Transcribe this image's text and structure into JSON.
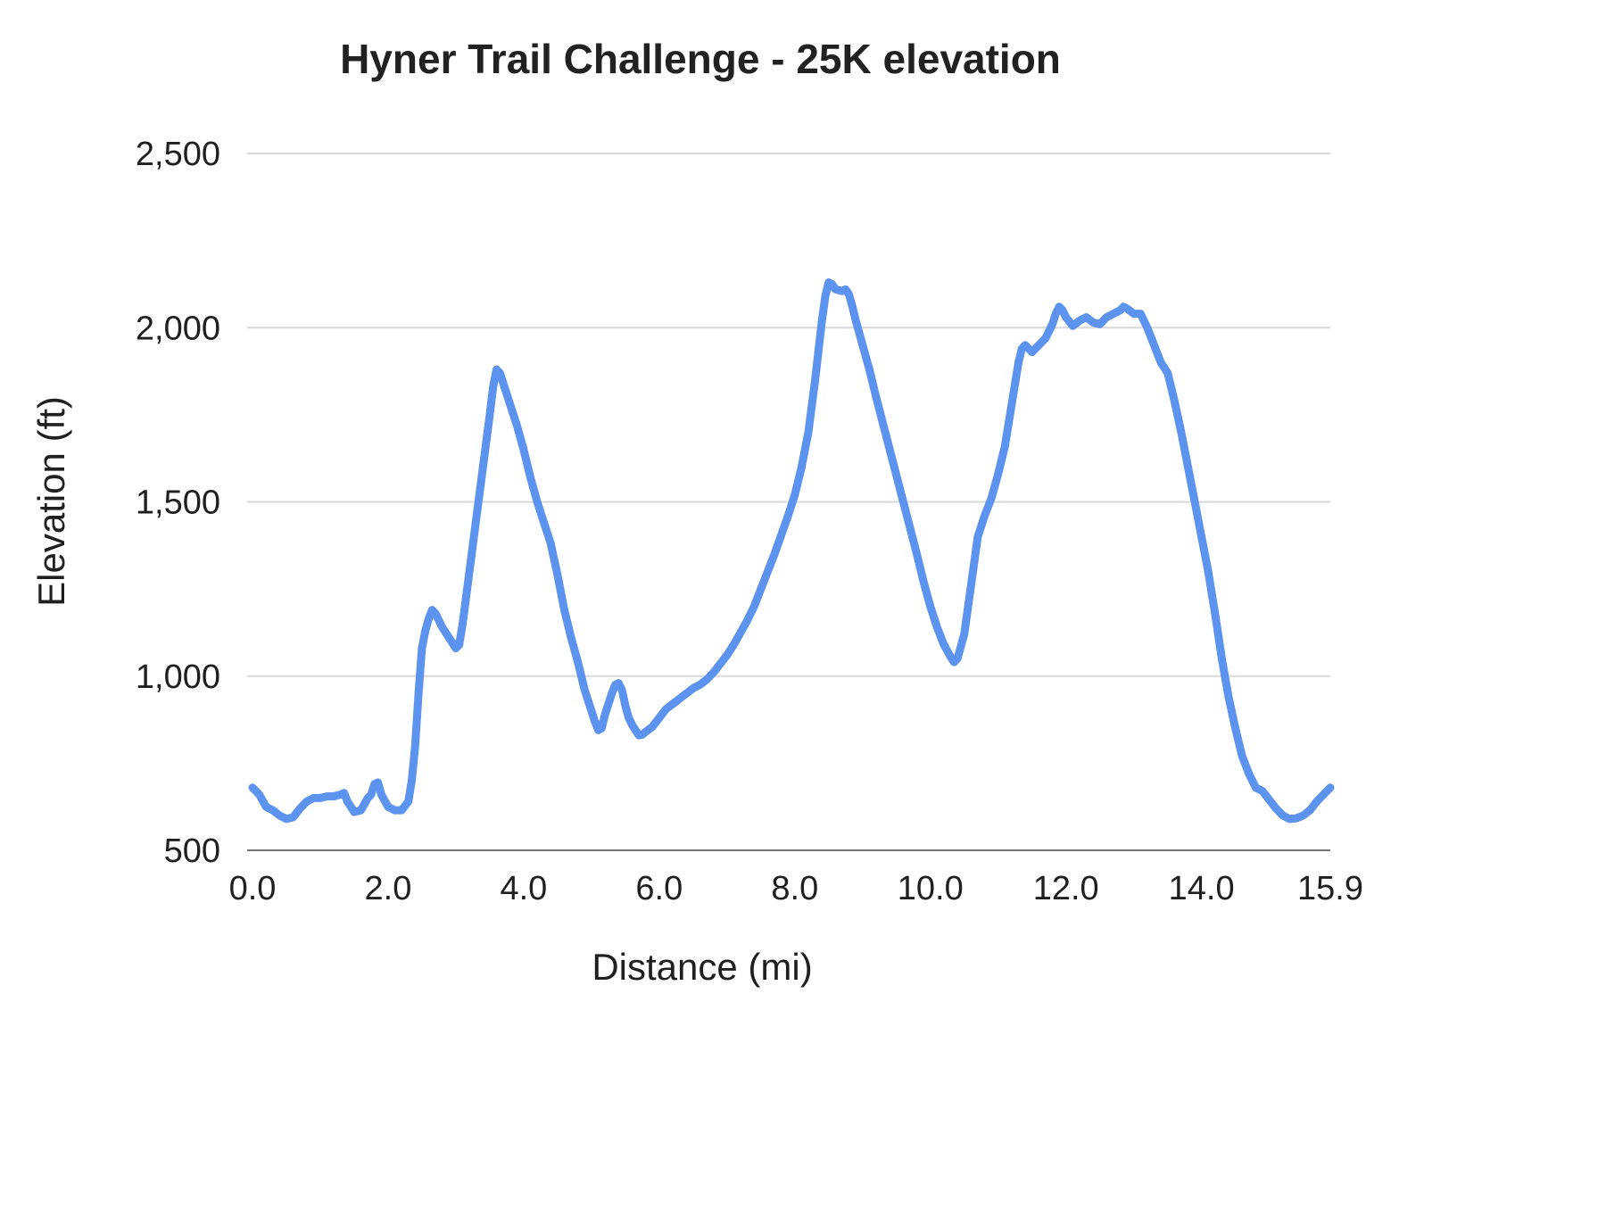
{
  "chart_data": {
    "type": "line",
    "title": "Hyner Trail Challenge - 25K elevation",
    "xlabel": "Distance (mi)",
    "ylabel": "Elevation (ft)",
    "xlim": [
      0,
      15.9
    ],
    "ylim": [
      500,
      2500
    ],
    "grid": "horizontal",
    "legend": "none",
    "line_color": "#5b93ee",
    "grid_color": "#d9d9d9",
    "baseline_color": "#757575",
    "y_ticks": [
      {
        "label": "500",
        "value": 500
      },
      {
        "label": "1,000",
        "value": 1000
      },
      {
        "label": "1,500",
        "value": 1500
      },
      {
        "label": "2,000",
        "value": 2000
      },
      {
        "label": "2,500",
        "value": 2500
      }
    ],
    "x_ticks": [
      {
        "label": "0.0",
        "value": 0
      },
      {
        "label": "2.0",
        "value": 2
      },
      {
        "label": "4.0",
        "value": 4
      },
      {
        "label": "6.0",
        "value": 6
      },
      {
        "label": "8.0",
        "value": 8
      },
      {
        "label": "10.0",
        "value": 10
      },
      {
        "label": "12.0",
        "value": 12
      },
      {
        "label": "14.0",
        "value": 14
      },
      {
        "label": "15.9",
        "value": 15.9
      }
    ],
    "series": [
      {
        "name": "Elevation",
        "x": [
          0.0,
          0.1,
          0.2,
          0.3,
          0.4,
          0.5,
          0.6,
          0.7,
          0.8,
          0.9,
          1.0,
          1.1,
          1.2,
          1.3,
          1.35,
          1.4,
          1.5,
          1.6,
          1.7,
          1.75,
          1.8,
          1.85,
          1.9,
          2.0,
          2.1,
          2.2,
          2.3,
          2.35,
          2.4,
          2.45,
          2.5,
          2.55,
          2.6,
          2.65,
          2.7,
          2.75,
          2.8,
          2.9,
          3.0,
          3.05,
          3.1,
          3.2,
          3.3,
          3.4,
          3.5,
          3.55,
          3.6,
          3.65,
          3.7,
          3.8,
          3.9,
          4.0,
          4.1,
          4.2,
          4.3,
          4.4,
          4.5,
          4.6,
          4.7,
          4.8,
          4.9,
          5.0,
          5.05,
          5.1,
          5.15,
          5.2,
          5.3,
          5.35,
          5.4,
          5.45,
          5.5,
          5.55,
          5.6,
          5.65,
          5.7,
          5.75,
          5.8,
          5.9,
          6.0,
          6.1,
          6.2,
          6.3,
          6.4,
          6.5,
          6.6,
          6.7,
          6.8,
          6.9,
          7.0,
          7.1,
          7.2,
          7.3,
          7.4,
          7.5,
          7.6,
          7.7,
          7.8,
          7.9,
          8.0,
          8.1,
          8.2,
          8.3,
          8.4,
          8.45,
          8.5,
          8.55,
          8.6,
          8.7,
          8.75,
          8.8,
          8.85,
          8.9,
          9.0,
          9.1,
          9.2,
          9.3,
          9.4,
          9.5,
          9.6,
          9.7,
          9.8,
          9.9,
          10.0,
          10.1,
          10.2,
          10.3,
          10.35,
          10.4,
          10.5,
          10.6,
          10.7,
          10.8,
          10.9,
          11.0,
          11.1,
          11.2,
          11.3,
          11.35,
          11.4,
          11.5,
          11.6,
          11.7,
          11.8,
          11.85,
          11.9,
          11.95,
          12.0,
          12.1,
          12.2,
          12.3,
          12.4,
          12.5,
          12.6,
          12.7,
          12.8,
          12.85,
          12.9,
          13.0,
          13.1,
          13.2,
          13.3,
          13.4,
          13.5,
          13.6,
          13.7,
          13.8,
          13.9,
          14.0,
          14.1,
          14.2,
          14.3,
          14.4,
          14.5,
          14.6,
          14.7,
          14.8,
          14.9,
          15.0,
          15.1,
          15.2,
          15.3,
          15.4,
          15.5,
          15.6,
          15.7,
          15.8,
          15.9
        ],
        "y": [
          680,
          660,
          625,
          615,
          600,
          590,
          595,
          620,
          640,
          650,
          650,
          655,
          655,
          660,
          665,
          640,
          610,
          615,
          650,
          660,
          690,
          695,
          660,
          625,
          615,
          615,
          640,
          700,
          800,
          950,
          1080,
          1130,
          1165,
          1190,
          1180,
          1160,
          1140,
          1110,
          1080,
          1090,
          1150,
          1300,
          1450,
          1600,
          1750,
          1830,
          1880,
          1870,
          1840,
          1780,
          1720,
          1650,
          1570,
          1500,
          1440,
          1380,
          1290,
          1190,
          1110,
          1040,
          960,
          900,
          870,
          845,
          850,
          890,
          950,
          975,
          980,
          960,
          915,
          880,
          860,
          845,
          830,
          832,
          840,
          855,
          880,
          905,
          920,
          935,
          950,
          965,
          975,
          990,
          1010,
          1035,
          1060,
          1090,
          1125,
          1160,
          1200,
          1250,
          1300,
          1350,
          1405,
          1460,
          1520,
          1600,
          1700,
          1850,
          2020,
          2090,
          2130,
          2125,
          2110,
          2105,
          2110,
          2095,
          2060,
          2020,
          1950,
          1880,
          1800,
          1725,
          1650,
          1575,
          1500,
          1425,
          1350,
          1270,
          1200,
          1140,
          1090,
          1055,
          1040,
          1050,
          1120,
          1260,
          1400,
          1460,
          1510,
          1580,
          1660,
          1780,
          1900,
          1940,
          1950,
          1930,
          1950,
          1970,
          2010,
          2040,
          2060,
          2050,
          2030,
          2005,
          2020,
          2030,
          2015,
          2010,
          2030,
          2040,
          2050,
          2060,
          2055,
          2040,
          2040,
          2000,
          1950,
          1900,
          1870,
          1790,
          1700,
          1600,
          1500,
          1400,
          1300,
          1180,
          1050,
          940,
          850,
          770,
          720,
          680,
          670,
          645,
          620,
          600,
          590,
          592,
          600,
          615,
          640,
          660,
          680
        ]
      }
    ]
  }
}
